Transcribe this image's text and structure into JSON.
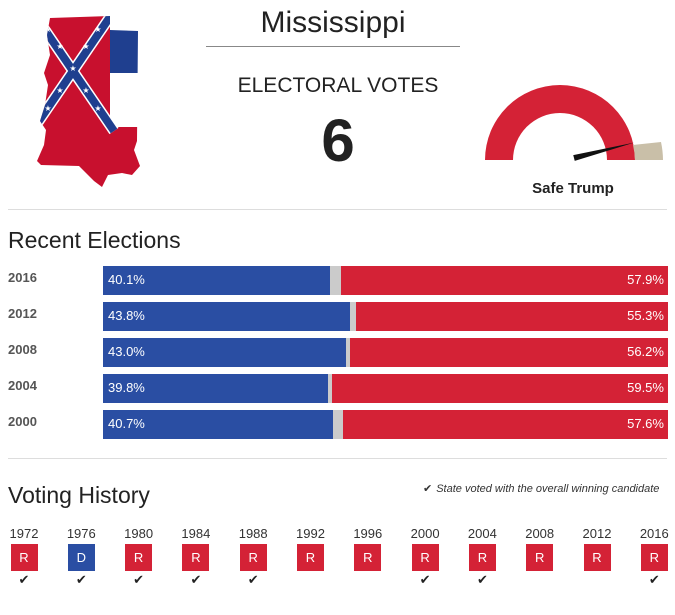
{
  "state": {
    "name": "Mississippi",
    "electoral_votes_label": "ELECTORAL VOTES",
    "electoral_votes": "6",
    "rating": "Safe Trump",
    "rating_level": 0.92
  },
  "colors": {
    "dem": "#2a4ea3",
    "rep": "#d42236",
    "other": "#cbcbcb",
    "gauge_safe_dem": "#c9bfa8",
    "flag_white": "#ffffff"
  },
  "recent_elections": {
    "title": "Recent Elections",
    "rows": [
      {
        "year": "2016",
        "dem": 40.1,
        "rep": 57.9,
        "dem_label": "40.1%",
        "rep_label": "57.9%"
      },
      {
        "year": "2012",
        "dem": 43.8,
        "rep": 55.3,
        "dem_label": "43.8%",
        "rep_label": "55.3%"
      },
      {
        "year": "2008",
        "dem": 43.0,
        "rep": 56.2,
        "dem_label": "43.0%",
        "rep_label": "56.2%"
      },
      {
        "year": "2004",
        "dem": 39.8,
        "rep": 59.5,
        "dem_label": "39.8%",
        "rep_label": "59.5%"
      },
      {
        "year": "2000",
        "dem": 40.7,
        "rep": 57.6,
        "dem_label": "40.7%",
        "rep_label": "57.6%"
      }
    ]
  },
  "voting_history": {
    "title": "Voting History",
    "legend": "State voted with the overall winning candidate",
    "legend_icon": "check-icon",
    "items": [
      {
        "year": "1972",
        "party": "R",
        "winner": true
      },
      {
        "year": "1976",
        "party": "D",
        "winner": true
      },
      {
        "year": "1980",
        "party": "R",
        "winner": true
      },
      {
        "year": "1984",
        "party": "R",
        "winner": true
      },
      {
        "year": "1988",
        "party": "R",
        "winner": true
      },
      {
        "year": "1992",
        "party": "R",
        "winner": false
      },
      {
        "year": "1996",
        "party": "R",
        "winner": false
      },
      {
        "year": "2000",
        "party": "R",
        "winner": true
      },
      {
        "year": "2004",
        "party": "R",
        "winner": true
      },
      {
        "year": "2008",
        "party": "R",
        "winner": false
      },
      {
        "year": "2012",
        "party": "R",
        "winner": false
      },
      {
        "year": "2016",
        "party": "R",
        "winner": true
      }
    ]
  }
}
